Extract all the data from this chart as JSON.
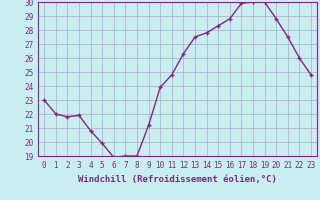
{
  "xlabel": "Windchill (Refroidissement éolien,°C)",
  "x": [
    0,
    1,
    2,
    3,
    4,
    5,
    6,
    7,
    8,
    9,
    10,
    11,
    12,
    13,
    14,
    15,
    16,
    17,
    18,
    19,
    20,
    21,
    22,
    23
  ],
  "y": [
    23.0,
    22.0,
    21.8,
    21.9,
    20.8,
    19.9,
    18.9,
    19.0,
    19.0,
    21.2,
    23.9,
    24.8,
    26.3,
    27.5,
    27.8,
    28.3,
    28.8,
    29.9,
    30.0,
    30.0,
    28.8,
    27.5,
    26.0,
    24.8
  ],
  "line_color": "#882288",
  "marker": "+",
  "bg_color": "#c8eef0",
  "grid_color": "#aaaacc",
  "ylim": [
    19,
    30
  ],
  "yticks": [
    19,
    20,
    21,
    22,
    23,
    24,
    25,
    26,
    27,
    28,
    29,
    30
  ],
  "xticks": [
    0,
    1,
    2,
    3,
    4,
    5,
    6,
    7,
    8,
    9,
    10,
    11,
    12,
    13,
    14,
    15,
    16,
    17,
    18,
    19,
    20,
    21,
    22,
    23
  ],
  "tick_label_fontsize": 5.5,
  "xlabel_fontsize": 6.5,
  "marker_size": 3.5,
  "line_width": 1.0
}
